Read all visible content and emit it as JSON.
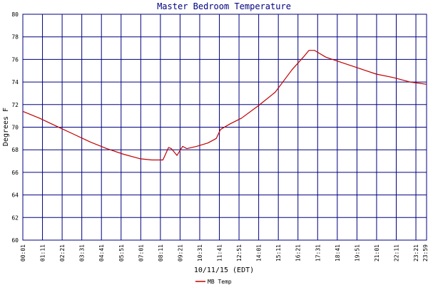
{
  "chart_data": {
    "type": "line",
    "title": "Master Bedroom Temperature",
    "xlabel": "10/11/15 (EDT)",
    "ylabel": "Degrees F",
    "ylim": [
      60,
      80
    ],
    "yticks": [
      60,
      62,
      64,
      66,
      68,
      70,
      72,
      74,
      76,
      78,
      80
    ],
    "xlim": [
      "00:01",
      "23:59"
    ],
    "xticks": [
      "00:01",
      "01:11",
      "02:21",
      "03:31",
      "04:41",
      "05:51",
      "07:01",
      "08:11",
      "09:21",
      "10:31",
      "11:41",
      "12:51",
      "14:01",
      "15:11",
      "16:21",
      "17:31",
      "18:41",
      "19:51",
      "21:01",
      "22:11",
      "23:21",
      "23:59"
    ],
    "grid": true,
    "legend_position": "bottom-left",
    "series": [
      {
        "name": "MB Temp",
        "color": "#c00000",
        "x": [
          "00:01",
          "01:00",
          "02:00",
          "03:00",
          "04:00",
          "05:00",
          "06:00",
          "07:00",
          "07:40",
          "08:20",
          "08:40",
          "08:50",
          "09:10",
          "09:30",
          "09:45",
          "10:20",
          "11:00",
          "11:30",
          "11:45",
          "12:20",
          "13:00",
          "14:00",
          "15:00",
          "16:00",
          "16:40",
          "17:00",
          "17:20",
          "17:40",
          "18:00",
          "19:00",
          "20:00",
          "21:00",
          "22:00",
          "23:00",
          "23:59"
        ],
        "y": [
          71.4,
          70.8,
          70.1,
          69.4,
          68.7,
          68.1,
          67.6,
          67.2,
          67.1,
          67.1,
          68.2,
          68.1,
          67.5,
          68.3,
          68.1,
          68.3,
          68.6,
          69.0,
          69.8,
          70.3,
          70.8,
          71.9,
          73.1,
          75.1,
          76.2,
          76.8,
          76.8,
          76.5,
          76.2,
          75.7,
          75.2,
          74.7,
          74.4,
          74.0,
          73.8
        ]
      }
    ]
  }
}
